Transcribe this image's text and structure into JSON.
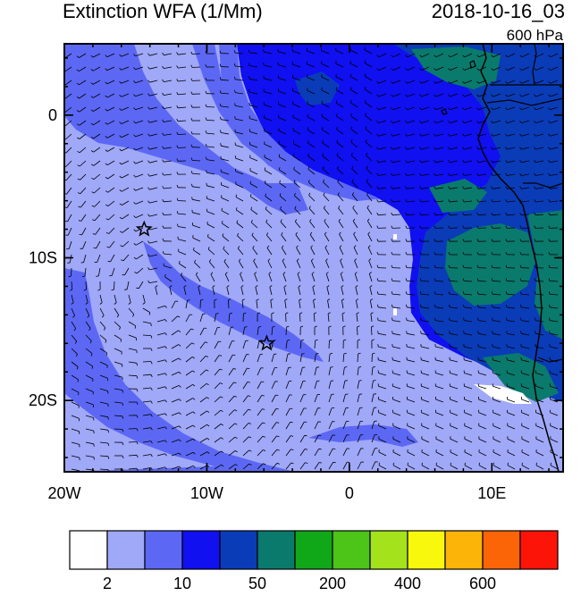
{
  "title": "Extinction WFA (1/Mm)",
  "datetime": "2018-10-16_03",
  "level": "600 hPa",
  "map": {
    "lon_range": [
      -20,
      15
    ],
    "lat_range": [
      -25,
      5
    ],
    "x_ticks": [
      {
        "value": -20,
        "label": "20W"
      },
      {
        "value": -10,
        "label": "10W"
      },
      {
        "value": 0,
        "label": "0"
      },
      {
        "value": 10,
        "label": "10E"
      }
    ],
    "y_ticks": [
      {
        "value": 0,
        "label": "0"
      },
      {
        "value": -10,
        "label": "10S"
      },
      {
        "value": -20,
        "label": "20S"
      }
    ],
    "stars": [
      {
        "lon": -14.4,
        "lat": -8.0
      },
      {
        "lon": -5.8,
        "lat": -16.0
      }
    ],
    "wind_barbs": true
  },
  "colorbar": {
    "colors": [
      "#ffffff",
      "#a0a8f8",
      "#5c68f4",
      "#1010f0",
      "#0a3cb8",
      "#0a7a6c",
      "#10a818",
      "#4cc418",
      "#a4e21c",
      "#f8f80c",
      "#fcb408",
      "#fc6408",
      "#fc1408"
    ],
    "labels": [
      {
        "after_box": 1,
        "label": "2"
      },
      {
        "after_box": 3,
        "label": "10"
      },
      {
        "after_box": 5,
        "label": "50"
      },
      {
        "after_box": 7,
        "label": "200"
      },
      {
        "after_box": 9,
        "label": "400"
      },
      {
        "after_box": 11,
        "label": "600"
      }
    ]
  },
  "palette": {
    "white": "#ffffff",
    "lavender": "#a0a8f8",
    "medium_blue": "#5c68f4",
    "blue": "#1010f0",
    "dark_blue": "#0a3cb8",
    "teal": "#0a7a6c"
  }
}
